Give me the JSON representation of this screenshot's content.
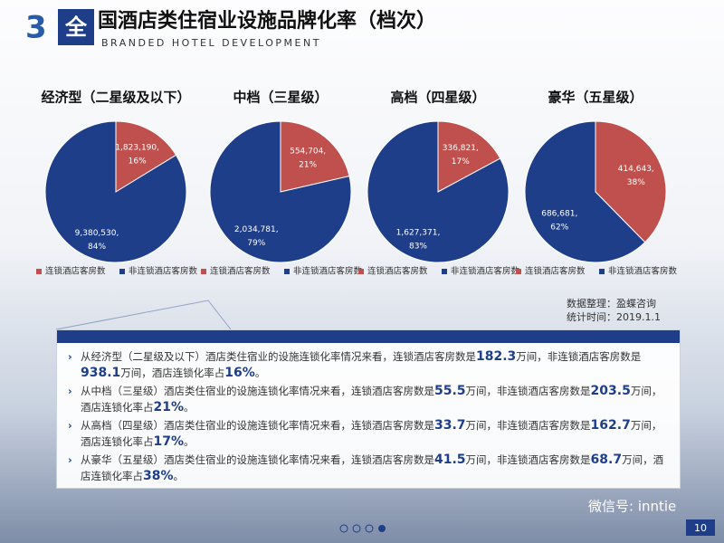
{
  "header": {
    "number": "3",
    "badge": "全",
    "title": "国酒店类住宿业设施品牌化率（档次）",
    "subtitle": "BRANDED HOTEL DEVELOPMENT"
  },
  "chart_data": [
    {
      "type": "pie",
      "title": "经济型（二星级及以下）",
      "categories": [
        "连锁酒店客房数",
        "非连锁酒店客房数"
      ],
      "colors": [
        "#c0504d",
        "#1f3e8a"
      ],
      "values": [
        1823190,
        9380530
      ],
      "value_labels": [
        "1,823,190,",
        "9,380,530,"
      ],
      "percents": [
        16,
        84
      ],
      "percent_labels": [
        "16%",
        "84%"
      ]
    },
    {
      "type": "pie",
      "title": "中档（三星级）",
      "categories": [
        "连锁酒店客房数",
        "非连锁酒店客房数"
      ],
      "colors": [
        "#c0504d",
        "#1f3e8a"
      ],
      "values": [
        554704,
        2034781
      ],
      "value_labels": [
        "554,704,",
        "2,034,781,"
      ],
      "percents": [
        21,
        79
      ],
      "percent_labels": [
        "21%",
        "79%"
      ]
    },
    {
      "type": "pie",
      "title": "高档（四星级）",
      "categories": [
        "连锁酒店客房数",
        "非连锁酒店客房数"
      ],
      "colors": [
        "#c0504d",
        "#1f3e8a"
      ],
      "values": [
        336821,
        1627371
      ],
      "value_labels": [
        "336,821,",
        "1,627,371,"
      ],
      "percents": [
        17,
        83
      ],
      "percent_labels": [
        "17%",
        "83%"
      ]
    },
    {
      "type": "pie",
      "title": "豪华（五星级）",
      "categories": [
        "连锁酒店客房数",
        "非连锁酒店客房数"
      ],
      "colors": [
        "#c0504d",
        "#1f3e8a"
      ],
      "values": [
        414643,
        686681
      ],
      "value_labels": [
        "414,643,",
        "686,681,"
      ],
      "percents": [
        38,
        62
      ],
      "percent_labels": [
        "38%",
        "62%"
      ]
    }
  ],
  "source": [
    "数据整理：盈蝶咨询",
    "统计时间：2019.1.1"
  ],
  "bullets": [
    [
      "从经济型（二星级及以下）酒店类住宿业的设施连锁化率情况来看，连锁酒店客房数是",
      "182.3",
      "万间，非连锁酒店客房数是",
      "938.1",
      "万间，酒店连锁化率占",
      "16%",
      "。"
    ],
    [
      "从中档（三星级）酒店类住宿业的设施连锁化率情况来看，连锁酒店客房数是",
      "55.5",
      "万间，非连锁酒店客房数是",
      "203.5",
      "万间，酒店连锁化率占",
      "21%",
      "。"
    ],
    [
      "从高档（四星级）酒店类住宿业的设施连锁化率情况来看，连锁酒店客房数是",
      "33.7",
      "万间，非连锁酒店客房数是",
      "162.7",
      "万间，酒店连锁化率占",
      "17%",
      "。"
    ],
    [
      "从豪华（五星级）酒店类住宿业的设施连锁化率情况来看，连锁酒店客房数是",
      "41.5",
      "万间，非连锁酒店客房数是",
      "68.7",
      "万间，酒店连锁化率占",
      "38%",
      "。"
    ]
  ],
  "watermark": "微信号: inntie",
  "page_number": "10"
}
